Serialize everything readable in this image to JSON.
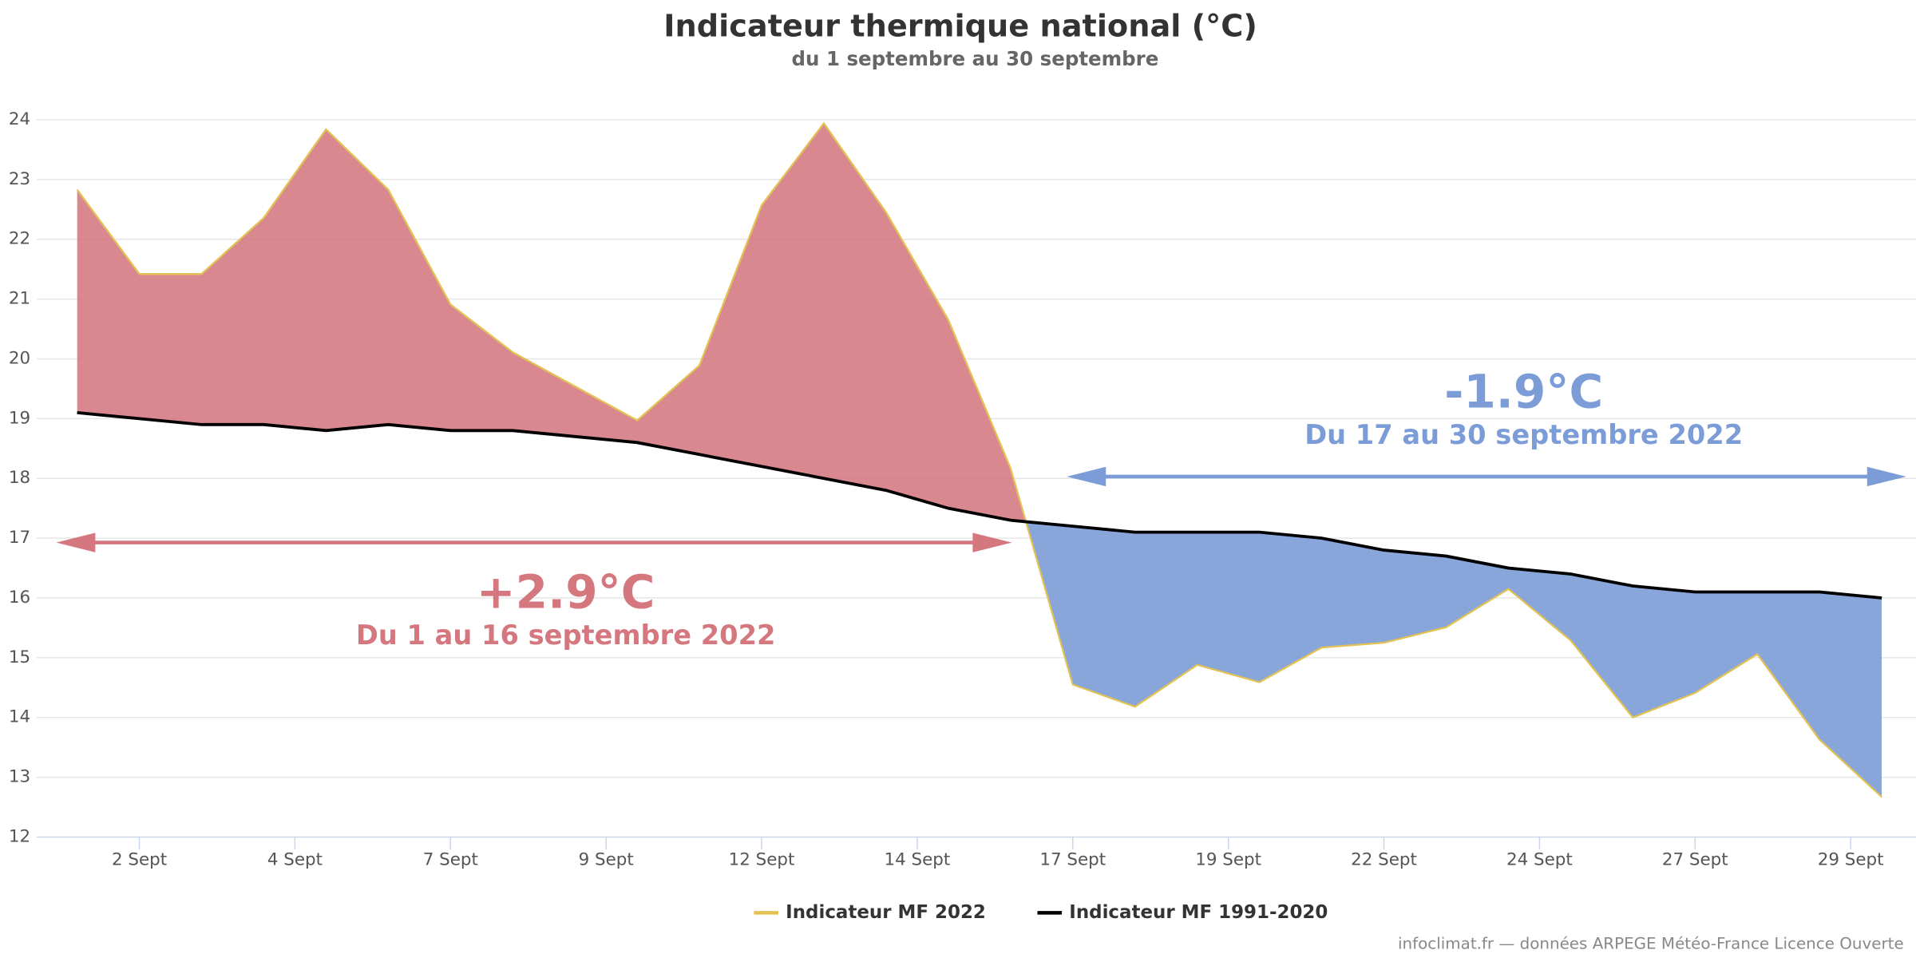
{
  "chart_data": {
    "type": "area-line",
    "title": "Indicateur thermique national (°C)",
    "subtitle": "du 1 septembre au 30 septembre",
    "x": [
      1,
      2,
      3,
      4,
      5,
      6,
      7,
      8,
      9,
      10,
      11,
      12,
      13,
      14,
      15,
      16,
      17,
      18,
      19,
      20,
      21,
      22,
      23,
      24,
      25,
      26,
      27,
      28,
      29,
      30
    ],
    "series": [
      {
        "name": "Indicateur MF 2022",
        "color": "#e3c255",
        "values": [
          22.83,
          21.42,
          21.42,
          22.36,
          23.84,
          22.83,
          20.91,
          20.11,
          19.54,
          18.97,
          19.89,
          22.57,
          23.94,
          22.45,
          20.65,
          18.17,
          14.55,
          14.18,
          14.88,
          14.59,
          15.17,
          15.25,
          15.51,
          16.15,
          15.29,
          14.0,
          14.41,
          15.06,
          13.63,
          12.67
        ]
      },
      {
        "name": "Indicateur MF 1991-2020",
        "color": "#000000",
        "values": [
          19.1,
          19.0,
          18.9,
          18.9,
          18.8,
          18.9,
          18.8,
          18.8,
          18.7,
          18.6,
          18.4,
          18.2,
          18.0,
          17.8,
          17.5,
          17.3,
          17.2,
          17.1,
          17.1,
          17.1,
          17.0,
          16.8,
          16.7,
          16.5,
          16.4,
          16.2,
          16.1,
          16.1,
          16.1,
          16.0
        ]
      }
    ],
    "above_color": "#d4777f",
    "below_color": "#7b9cd6",
    "xlim": [
      0.35,
      30.55
    ],
    "xticks": [
      {
        "value": 2,
        "label": "2 Sept"
      },
      {
        "value": 4.5,
        "label": "4 Sept"
      },
      {
        "value": 7,
        "label": "7 Sept"
      },
      {
        "value": 9.5,
        "label": "9 Sept"
      },
      {
        "value": 12,
        "label": "12 Sept"
      },
      {
        "value": 14.5,
        "label": "14 Sept"
      },
      {
        "value": 17,
        "label": "17 Sept"
      },
      {
        "value": 19.5,
        "label": "19 Sept"
      },
      {
        "value": 22,
        "label": "22 Sept"
      },
      {
        "value": 24.5,
        "label": "24 Sept"
      },
      {
        "value": 27,
        "label": "27 Sept"
      },
      {
        "value": 29.5,
        "label": "29 Sept"
      }
    ],
    "ylim": [
      12,
      24
    ],
    "yticks": [
      12,
      13,
      14,
      15,
      16,
      17,
      18,
      19,
      20,
      21,
      22,
      23,
      24
    ],
    "grid": true,
    "annotations": [
      {
        "value": "+2.9°C",
        "period": "Du 1 au 16 septembre 2022"
      },
      {
        "value": "-1.9°C",
        "period": "Du 17 au 30 septembre 2022"
      }
    ],
    "credits": "infoclimat.fr — données ARPEGE Météo-France Licence Ouverte"
  }
}
